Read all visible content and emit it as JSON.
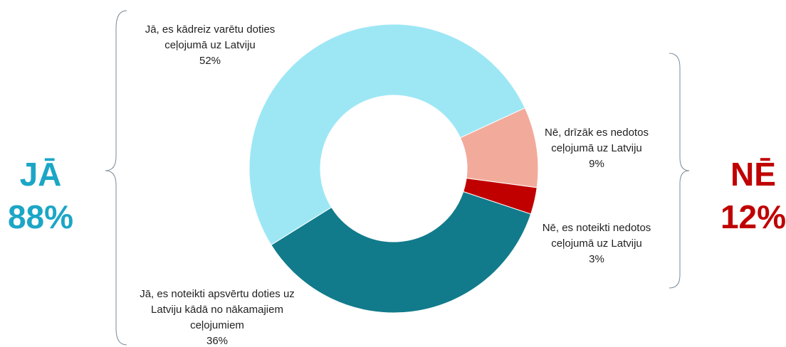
{
  "chart_data": {
    "type": "donut",
    "categories": [
      "Jā, es kādreiz varētu doties ceļojumā uz Latviju",
      "Nē, drīzāk es nedotos ceļojumā uz Latviju",
      "Nē, es noteikti nedotos ceļojumā uz Latviju",
      "Jā, es noteikti apsvērtu doties uz Latviju kādā no nākamajiem ceļojumiem"
    ],
    "values": [
      52,
      9,
      3,
      36
    ],
    "value_labels": [
      "52%",
      "9%",
      "3%",
      "36%"
    ],
    "colors": [
      "#9de7f5",
      "#f2ab9b",
      "#c00000",
      "#117b8b"
    ],
    "annotations": [
      {
        "text": "JĀ",
        "value_label": "88%",
        "color": "#1ca6c6"
      },
      {
        "text": "NĒ",
        "value_label": "12%",
        "color": "#c00000"
      }
    ]
  }
}
